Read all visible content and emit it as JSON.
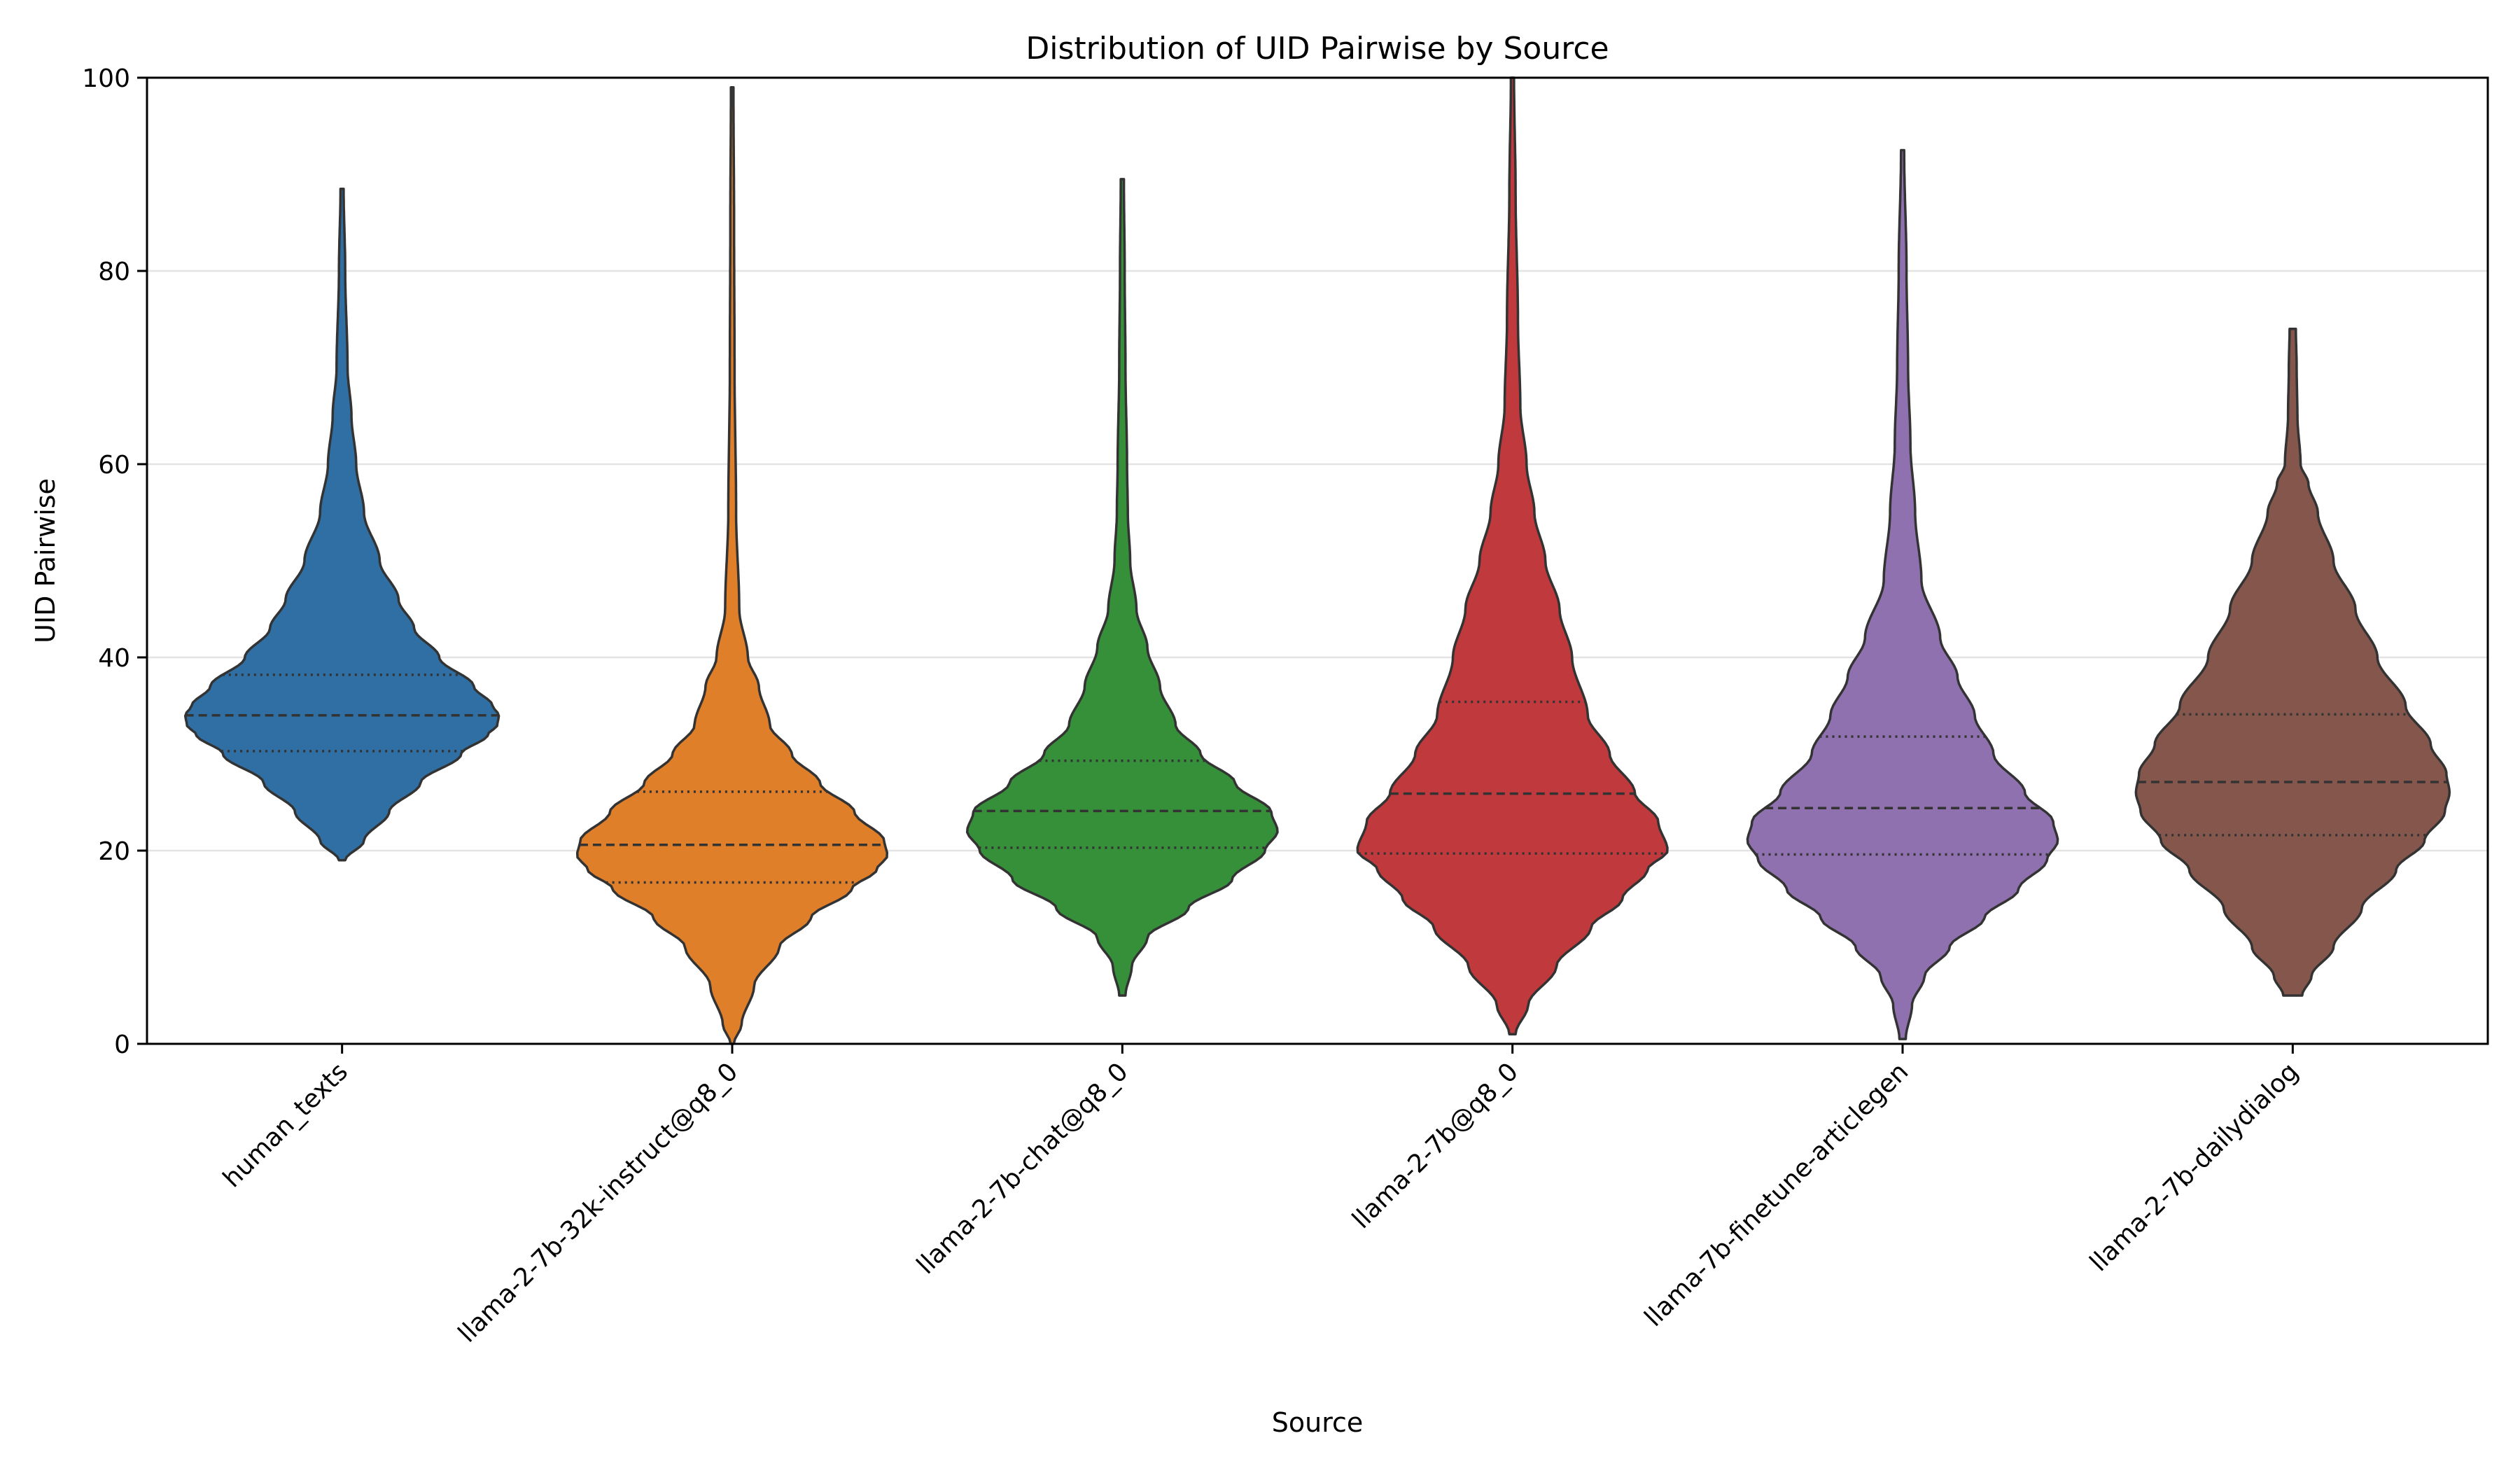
{
  "chart_data": {
    "type": "violin",
    "title": "Distribution of UID Pairwise by Source",
    "xlabel": "Source",
    "ylabel": "UID Pairwise",
    "ylim": [
      0,
      100
    ],
    "yticks": [
      0,
      20,
      40,
      60,
      80,
      100
    ],
    "grid": "y",
    "legend": "none",
    "categories": [
      "human_texts",
      "llama-2-7b-32k-instruct@q8_0",
      "llama-2-7b-chat@q8_0",
      "llama-2-7b@q8_0",
      "llama-7b-finetune-articlegen",
      "llama-2-7b-dailydialog"
    ],
    "colors": [
      "#2f6fa3",
      "#e07f2a",
      "#36903a",
      "#c0393d",
      "#9071b0",
      "#85574c"
    ],
    "quartiles": [
      {
        "q1": 30.3,
        "median": 34.0,
        "q3": 38.2
      },
      {
        "q1": 16.7,
        "median": 20.6,
        "q3": 26.1
      },
      {
        "q1": 20.3,
        "median": 24.1,
        "q3": 29.3
      },
      {
        "q1": 19.7,
        "median": 25.9,
        "q3": 35.4
      },
      {
        "q1": 19.6,
        "median": 24.4,
        "q3": 31.8
      },
      {
        "q1": 21.6,
        "median": 27.1,
        "q3": 34.1
      }
    ],
    "ranges": [
      {
        "min": 19,
        "max": 88.5
      },
      {
        "min": 0,
        "max": 99
      },
      {
        "min": 5,
        "max": 89.5
      },
      {
        "min": 1,
        "max": 100
      },
      {
        "min": 0.5,
        "max": 92.5
      },
      {
        "min": 5,
        "max": 74
      }
    ],
    "density_profiles": [
      [
        [
          19,
          0.02
        ],
        [
          21,
          0.14
        ],
        [
          24,
          0.3
        ],
        [
          27,
          0.5
        ],
        [
          30,
          0.76
        ],
        [
          32,
          0.93
        ],
        [
          33,
          0.99
        ],
        [
          34,
          1.0
        ],
        [
          35,
          0.96
        ],
        [
          37,
          0.84
        ],
        [
          40,
          0.62
        ],
        [
          43,
          0.46
        ],
        [
          46,
          0.36
        ],
        [
          50,
          0.24
        ],
        [
          55,
          0.14
        ],
        [
          60,
          0.09
        ],
        [
          65,
          0.06
        ],
        [
          70,
          0.035
        ],
        [
          80,
          0.02
        ],
        [
          88.5,
          0.01
        ]
      ],
      [
        [
          0,
          0.01
        ],
        [
          2,
          0.06
        ],
        [
          6,
          0.14
        ],
        [
          10,
          0.3
        ],
        [
          13,
          0.5
        ],
        [
          16,
          0.76
        ],
        [
          18,
          0.92
        ],
        [
          19.5,
          0.99
        ],
        [
          21,
          0.97
        ],
        [
          24,
          0.78
        ],
        [
          27,
          0.56
        ],
        [
          30,
          0.38
        ],
        [
          33,
          0.24
        ],
        [
          37,
          0.17
        ],
        [
          40,
          0.1
        ],
        [
          45,
          0.045
        ],
        [
          55,
          0.025
        ],
        [
          70,
          0.015
        ],
        [
          85,
          0.012
        ],
        [
          99,
          0.008
        ]
      ],
      [
        [
          5,
          0.02
        ],
        [
          8,
          0.06
        ],
        [
          11,
          0.16
        ],
        [
          14,
          0.42
        ],
        [
          17,
          0.7
        ],
        [
          20,
          0.91
        ],
        [
          22,
          0.99
        ],
        [
          24,
          0.95
        ],
        [
          27,
          0.72
        ],
        [
          30,
          0.5
        ],
        [
          33,
          0.34
        ],
        [
          37,
          0.24
        ],
        [
          41,
          0.16
        ],
        [
          45,
          0.09
        ],
        [
          50,
          0.05
        ],
        [
          55,
          0.035
        ],
        [
          60,
          0.03
        ],
        [
          70,
          0.02
        ],
        [
          80,
          0.015
        ],
        [
          89.5,
          0.01
        ]
      ],
      [
        [
          1,
          0.02
        ],
        [
          4,
          0.1
        ],
        [
          8,
          0.28
        ],
        [
          12,
          0.5
        ],
        [
          15,
          0.7
        ],
        [
          18,
          0.86
        ],
        [
          20,
          0.99
        ],
        [
          23,
          0.93
        ],
        [
          26,
          0.78
        ],
        [
          30,
          0.62
        ],
        [
          34,
          0.48
        ],
        [
          40,
          0.38
        ],
        [
          45,
          0.3
        ],
        [
          50,
          0.21
        ],
        [
          55,
          0.14
        ],
        [
          60,
          0.09
        ],
        [
          66,
          0.05
        ],
        [
          75,
          0.035
        ],
        [
          88,
          0.02
        ],
        [
          100,
          0.01
        ]
      ],
      [
        [
          0.5,
          0.02
        ],
        [
          4,
          0.06
        ],
        [
          7,
          0.14
        ],
        [
          10,
          0.3
        ],
        [
          13,
          0.52
        ],
        [
          16,
          0.74
        ],
        [
          19,
          0.92
        ],
        [
          21,
          0.99
        ],
        [
          23,
          0.96
        ],
        [
          26,
          0.78
        ],
        [
          30,
          0.58
        ],
        [
          34,
          0.46
        ],
        [
          38,
          0.35
        ],
        [
          42,
          0.24
        ],
        [
          48,
          0.12
        ],
        [
          55,
          0.08
        ],
        [
          62,
          0.05
        ],
        [
          70,
          0.035
        ],
        [
          80,
          0.025
        ],
        [
          92.5,
          0.01
        ]
      ],
      [
        [
          5,
          0.06
        ],
        [
          7,
          0.12
        ],
        [
          10,
          0.26
        ],
        [
          14,
          0.44
        ],
        [
          18,
          0.66
        ],
        [
          21,
          0.84
        ],
        [
          24,
          0.97
        ],
        [
          26,
          1.0
        ],
        [
          28,
          0.98
        ],
        [
          31,
          0.88
        ],
        [
          35,
          0.72
        ],
        [
          40,
          0.54
        ],
        [
          45,
          0.4
        ],
        [
          50,
          0.26
        ],
        [
          55,
          0.16
        ],
        [
          58,
          0.1
        ],
        [
          60,
          0.05
        ],
        [
          65,
          0.03
        ],
        [
          70,
          0.025
        ],
        [
          74,
          0.02
        ]
      ]
    ]
  }
}
